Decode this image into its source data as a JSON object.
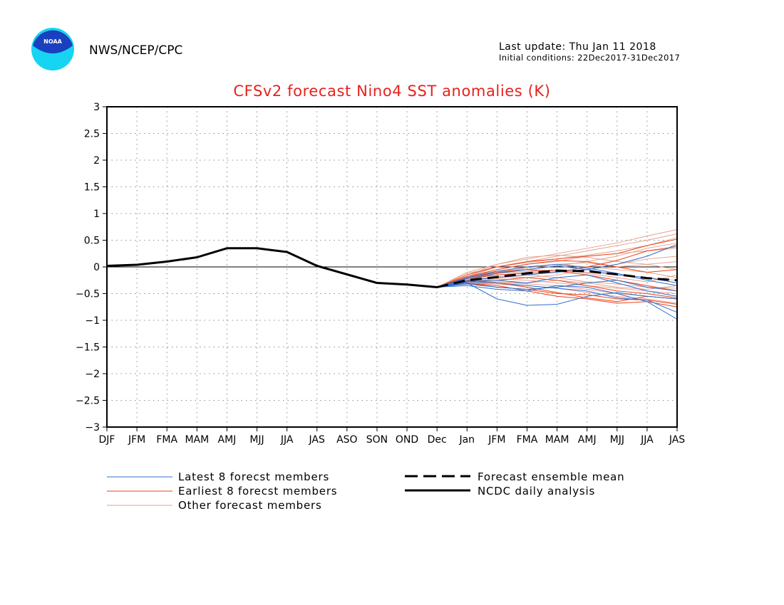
{
  "header": {
    "agency": "NWS/NCEP/CPC",
    "logo_text": "NOAA",
    "last_update": "Last update: Thu Jan 11 2018",
    "initial_conditions": "Initial conditions: 22Dec2017-31Dec2017"
  },
  "colors": {
    "title": "#e8211c",
    "latest_members": "#2f6fd0",
    "earliest_members": "#e8441c",
    "other_members": "#e6a08c",
    "analysis": "#000000",
    "logo_outer": "#16d4f2",
    "logo_inner": "#1a3fbf"
  },
  "legend": {
    "latest": "Latest 8 forecst members",
    "earliest": "Earliest 8 forecst members",
    "other": "Other forecast members",
    "mean": "Forecast ensemble mean",
    "analysis": "NCDC daily analysis"
  },
  "chart_data": {
    "type": "line",
    "title": "CFSv2 forecast Nino4 SST anomalies (K)",
    "xlabel": "",
    "ylabel": "",
    "categories": [
      "DJF",
      "JFM",
      "FMA",
      "MAM",
      "AMJ",
      "MJJ",
      "JJA",
      "JAS",
      "ASO",
      "SON",
      "OND",
      "Dec",
      "Jan",
      "JFM",
      "FMA",
      "MAM",
      "AMJ",
      "MJJ",
      "JJA",
      "JAS"
    ],
    "ylim": [
      -3,
      3
    ],
    "yticks": [
      3,
      2.5,
      2,
      1.5,
      1,
      0.5,
      0,
      -0.5,
      -1,
      -1.5,
      -2,
      -2.5,
      -3
    ],
    "ytick_labels": [
      "3",
      "2.5",
      "2",
      "1.5",
      "1",
      "0.5",
      "0",
      "−0.5",
      "−1",
      "−1.5",
      "−2",
      "−2.5",
      "−3"
    ],
    "grid": true,
    "legend_position": "bottom",
    "analysis": {
      "name": "NCDC daily analysis",
      "values": [
        0.02,
        0.04,
        0.1,
        0.18,
        0.35,
        0.35,
        0.28,
        0.02,
        -0.14,
        -0.3,
        -0.33,
        -0.38
      ]
    },
    "ensemble_mean": {
      "name": "Forecast ensemble mean",
      "start_index": 11,
      "values": [
        -0.38,
        -0.25,
        -0.19,
        -0.12,
        -0.07,
        -0.08,
        -0.14,
        -0.21,
        -0.25
      ]
    },
    "forecast_members": {
      "start_index": 11,
      "latest": [
        [
          -0.38,
          -0.3,
          -0.6,
          -0.72,
          -0.7,
          -0.55,
          -0.48,
          -0.55,
          -0.6
        ],
        [
          -0.38,
          -0.35,
          -0.42,
          -0.45,
          -0.35,
          -0.38,
          -0.5,
          -0.65,
          -0.98
        ],
        [
          -0.38,
          -0.22,
          -0.12,
          -0.05,
          0.02,
          -0.05,
          0.05,
          0.2,
          0.42
        ],
        [
          -0.38,
          -0.28,
          -0.3,
          -0.35,
          -0.4,
          -0.45,
          -0.58,
          -0.62,
          -0.85
        ],
        [
          -0.38,
          -0.25,
          -0.2,
          -0.15,
          -0.1,
          -0.05,
          -0.15,
          -0.2,
          -0.3
        ],
        [
          -0.38,
          -0.32,
          -0.38,
          -0.42,
          -0.38,
          -0.3,
          -0.25,
          -0.38,
          -0.45
        ],
        [
          -0.38,
          -0.2,
          -0.08,
          0.0,
          0.05,
          -0.02,
          -0.12,
          -0.25,
          -0.35
        ],
        [
          -0.38,
          -0.27,
          -0.25,
          -0.3,
          -0.2,
          -0.15,
          -0.3,
          -0.45,
          -0.55
        ]
      ],
      "earliest": [
        [
          -0.38,
          -0.15,
          0.0,
          0.1,
          0.15,
          0.2,
          0.25,
          0.4,
          0.52
        ],
        [
          -0.38,
          -0.3,
          -0.35,
          -0.45,
          -0.55,
          -0.6,
          -0.68,
          -0.65,
          -0.75
        ],
        [
          -0.38,
          -0.2,
          -0.1,
          -0.05,
          -0.08,
          -0.15,
          -0.25,
          -0.35,
          -0.45
        ],
        [
          -0.38,
          -0.25,
          -0.3,
          -0.38,
          -0.48,
          -0.58,
          -0.65,
          -0.55,
          -0.6
        ],
        [
          -0.38,
          -0.18,
          -0.05,
          0.05,
          0.12,
          0.1,
          0.0,
          -0.1,
          -0.05
        ],
        [
          -0.38,
          -0.28,
          -0.25,
          -0.2,
          -0.25,
          -0.35,
          -0.45,
          -0.5,
          -0.58
        ],
        [
          -0.38,
          -0.22,
          -0.15,
          -0.12,
          -0.1,
          0.0,
          0.12,
          0.3,
          0.38
        ],
        [
          -0.38,
          -0.3,
          -0.38,
          -0.42,
          -0.5,
          -0.52,
          -0.6,
          -0.62,
          -0.7
        ]
      ],
      "other": [
        [
          -0.38,
          -0.1,
          0.05,
          0.15,
          0.25,
          0.35,
          0.45,
          0.58,
          0.7
        ],
        [
          -0.38,
          -0.18,
          0.0,
          0.1,
          0.2,
          0.3,
          0.4,
          0.5,
          0.62
        ],
        [
          -0.38,
          -0.2,
          -0.05,
          0.05,
          0.1,
          0.2,
          0.25,
          0.3,
          0.35
        ],
        [
          -0.38,
          -0.25,
          -0.12,
          -0.02,
          0.05,
          0.08,
          0.0,
          0.05,
          0.1
        ],
        [
          -0.38,
          -0.22,
          -0.15,
          -0.1,
          -0.05,
          -0.1,
          -0.15,
          -0.2,
          -0.25
        ],
        [
          -0.38,
          -0.28,
          -0.22,
          -0.25,
          -0.3,
          -0.35,
          -0.4,
          -0.45,
          -0.5
        ],
        [
          -0.38,
          -0.3,
          -0.32,
          -0.35,
          -0.4,
          -0.48,
          -0.55,
          -0.6,
          -0.68
        ],
        [
          -0.38,
          -0.15,
          0.05,
          0.18,
          0.22,
          0.18,
          0.1,
          0.05,
          -0.05
        ],
        [
          -0.38,
          -0.2,
          -0.1,
          0.0,
          0.05,
          0.0,
          -0.05,
          -0.1,
          -0.2
        ],
        [
          -0.38,
          -0.24,
          -0.18,
          -0.2,
          -0.15,
          -0.05,
          0.05,
          0.15,
          0.2
        ],
        [
          -0.38,
          -0.26,
          -0.2,
          -0.15,
          -0.2,
          -0.28,
          -0.32,
          -0.38,
          -0.4
        ],
        [
          -0.38,
          -0.18,
          -0.08,
          -0.05,
          0.02,
          0.1,
          0.2,
          0.35,
          0.45
        ],
        [
          -0.38,
          -0.32,
          -0.28,
          -0.3,
          -0.25,
          -0.3,
          -0.38,
          -0.42,
          -0.35
        ],
        [
          -0.38,
          -0.12,
          0.0,
          0.08,
          0.15,
          0.22,
          0.3,
          0.4,
          0.55
        ],
        [
          -0.38,
          -0.25,
          -0.28,
          -0.32,
          -0.35,
          -0.42,
          -0.5,
          -0.55,
          -0.6
        ],
        [
          -0.38,
          -0.2,
          -0.12,
          -0.08,
          -0.05,
          -0.12,
          -0.2,
          -0.28,
          -0.15
        ]
      ]
    }
  }
}
